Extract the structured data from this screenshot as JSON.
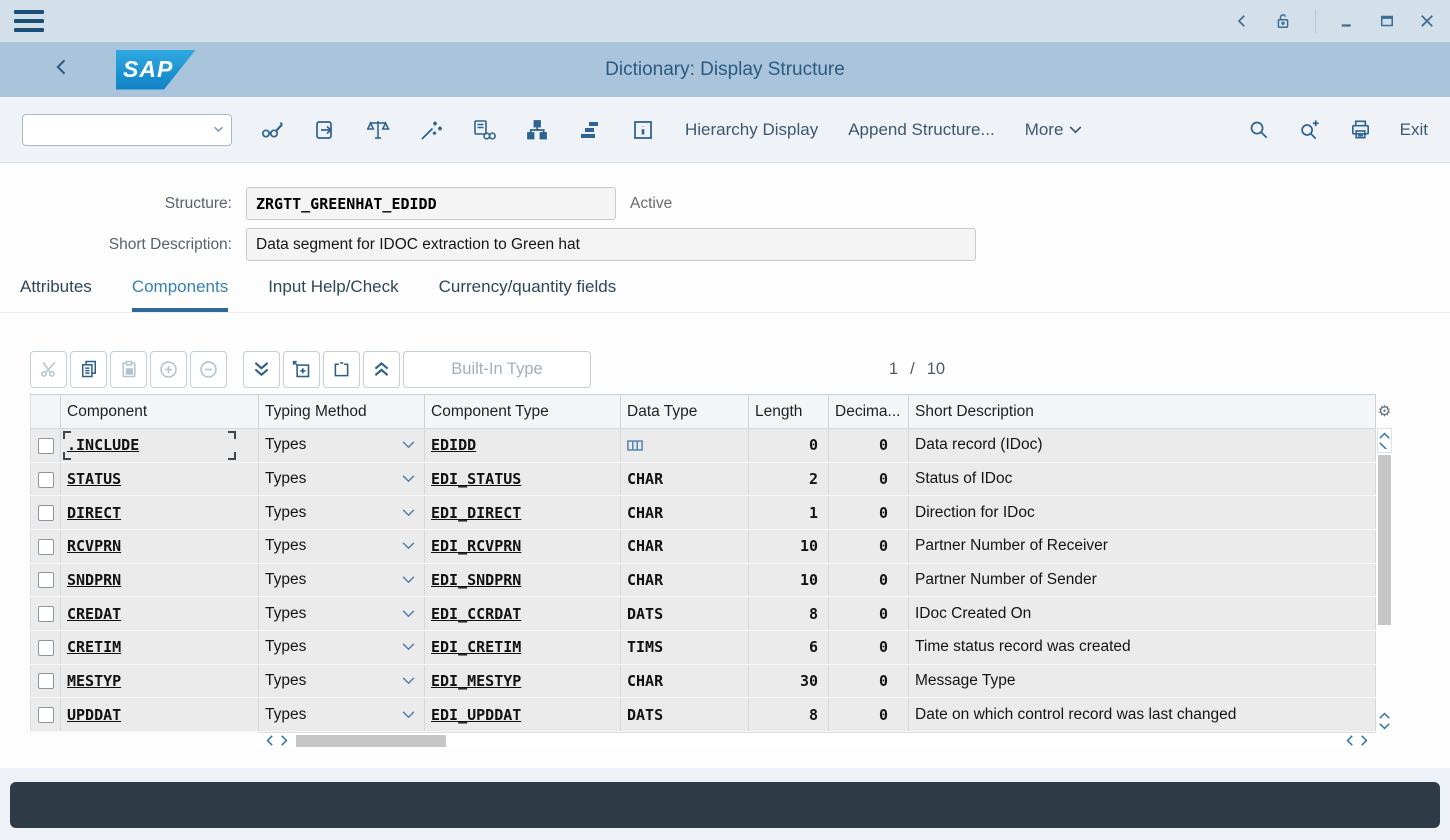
{
  "window": {
    "menu_icon": "hamburger",
    "controls": [
      "back",
      "unlock",
      "minimize",
      "maximize",
      "close"
    ]
  },
  "header": {
    "logo_text": "SAP",
    "title": "Dictionary: Display Structure"
  },
  "toolbar": {
    "command_value": "",
    "icons": [
      "display-change",
      "copy-object",
      "consistency-check",
      "activate",
      "where-used-list",
      "hierarchy",
      "object-list",
      "information"
    ],
    "buttons": [
      {
        "label": "Hierarchy Display"
      },
      {
        "label": "Append Structure..."
      },
      {
        "label": "More"
      }
    ],
    "right_icons": [
      "search",
      "search-more",
      "print"
    ],
    "exit_label": "Exit"
  },
  "form": {
    "structure_label": "Structure:",
    "structure_value": "ZRGTT_GREENHAT_EDIDD",
    "status_text": "Active",
    "short_description_label": "Short Description:",
    "short_description_value": "Data segment for IDOC extraction to Green hat"
  },
  "tabs": [
    {
      "label": "Attributes",
      "active": false
    },
    {
      "label": "Components",
      "active": true
    },
    {
      "label": "Input Help/Check",
      "active": false
    },
    {
      "label": "Currency/quantity fields",
      "active": false
    }
  ],
  "table_toolbar": {
    "icons": [
      "cut",
      "copy",
      "paste",
      "add-row",
      "remove-row",
      "expand-all",
      "insert-row",
      "delete-row",
      "collapse-all"
    ],
    "builtin_type_label": "Built-In Type",
    "pager": {
      "current": "1",
      "separator": "/",
      "total": "10"
    }
  },
  "table": {
    "columns": [
      "Component",
      "Typing Method",
      "Component Type",
      "Data Type",
      "Length",
      "Decima...",
      "Short Description"
    ],
    "rows": [
      {
        "component": ".INCLUDE",
        "typing": "Types",
        "component_type": "EDIDD",
        "data_type": "",
        "data_type_icon": "structure",
        "length": "0",
        "decimals": "0",
        "description": "Data record (IDoc)"
      },
      {
        "component": "STATUS",
        "typing": "Types",
        "component_type": "EDI_STATUS",
        "data_type": "CHAR",
        "data_type_icon": "",
        "length": "2",
        "decimals": "0",
        "description": "Status of IDoc"
      },
      {
        "component": "DIRECT",
        "typing": "Types",
        "component_type": "EDI_DIRECT",
        "data_type": "CHAR",
        "data_type_icon": "",
        "length": "1",
        "decimals": "0",
        "description": "Direction for IDoc"
      },
      {
        "component": "RCVPRN",
        "typing": "Types",
        "component_type": "EDI_RCVPRN",
        "data_type": "CHAR",
        "data_type_icon": "",
        "length": "10",
        "decimals": "0",
        "description": "Partner Number of Receiver"
      },
      {
        "component": "SNDPRN",
        "typing": "Types",
        "component_type": "EDI_SNDPRN",
        "data_type": "CHAR",
        "data_type_icon": "",
        "length": "10",
        "decimals": "0",
        "description": "Partner Number of Sender"
      },
      {
        "component": "CREDAT",
        "typing": "Types",
        "component_type": "EDI_CCRDAT",
        "data_type": "DATS",
        "data_type_icon": "",
        "length": "8",
        "decimals": "0",
        "description": "IDoc Created On"
      },
      {
        "component": "CRETIM",
        "typing": "Types",
        "component_type": "EDI_CRETIM",
        "data_type": "TIMS",
        "data_type_icon": "",
        "length": "6",
        "decimals": "0",
        "description": "Time status record was created"
      },
      {
        "component": "MESTYP",
        "typing": "Types",
        "component_type": "EDI_MESTYP",
        "data_type": "CHAR",
        "data_type_icon": "",
        "length": "30",
        "decimals": "0",
        "description": "Message Type"
      },
      {
        "component": "UPDDAT",
        "typing": "Types",
        "component_type": "EDI_UPDDAT",
        "data_type": "DATS",
        "data_type_icon": "",
        "length": "8",
        "decimals": "0",
        "description": "Date on which control record was last changed"
      }
    ]
  },
  "colors": {
    "accent_blue": "#2f6391",
    "header_band": "#aac5db",
    "topbar": "#d3dfe9",
    "active_tab": "#3781b3",
    "row_bg": "#ebebeb",
    "statusbar": "#2e3a46",
    "structure_icon_blue": "#4e7fae"
  }
}
